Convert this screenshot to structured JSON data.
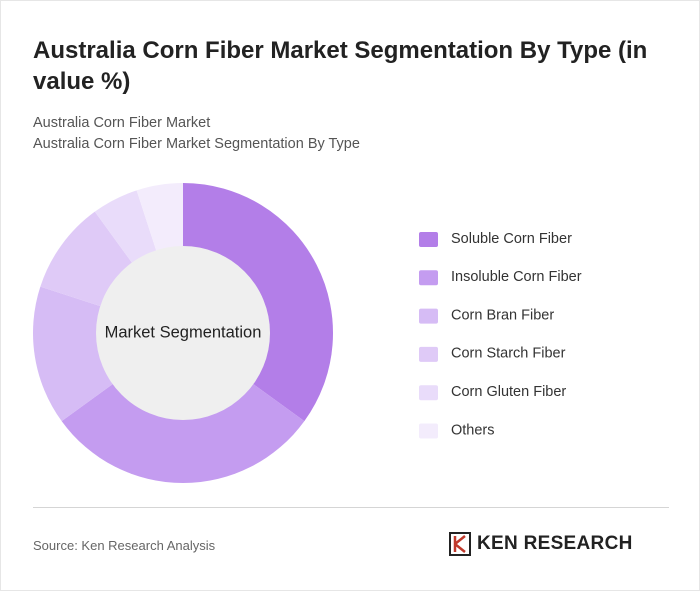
{
  "chart_data": {
    "type": "donut",
    "title": "Australia Corn Fiber Market Segmentation By Type (in value %)",
    "subtitle": [
      "Australia Corn Fiber Market",
      "Australia Corn Fiber Market Segmentation By Type"
    ],
    "center_label": "Market Segmentation",
    "categories": [
      "Soluble Corn Fiber",
      "Insoluble Corn Fiber",
      "Corn Bran Fiber",
      "Corn Starch Fiber",
      "Corn Gluten Fiber",
      "Others"
    ],
    "values": [
      35,
      30,
      15,
      10,
      5,
      5
    ],
    "colors": [
      "#b37ee8",
      "#c49cf0",
      "#d6bcf5",
      "#dfcaf7",
      "#e9dcfa",
      "#f3ecfc"
    ],
    "legend": "right"
  },
  "footer": {
    "source": "Source: Ken Research Analysis",
    "logo": "KEN RESEARCH"
  }
}
